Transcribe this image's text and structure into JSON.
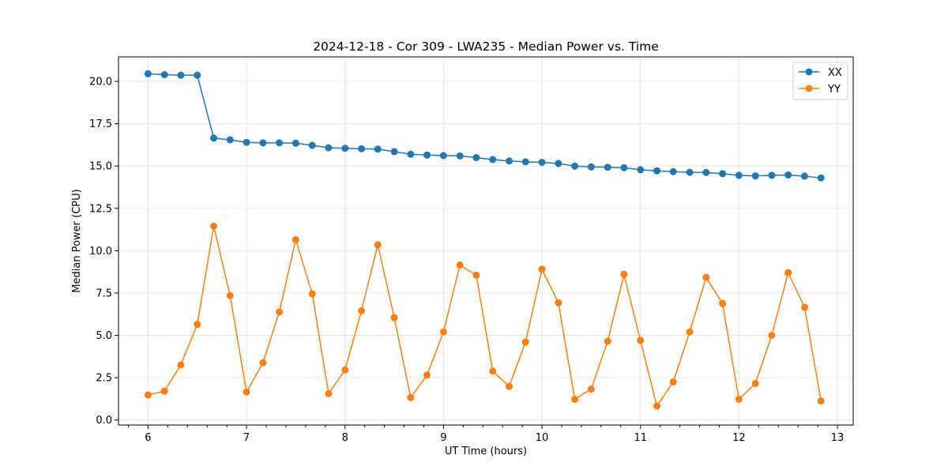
{
  "chart_data": {
    "type": "line",
    "title": "2024-12-18 - Cor 309 - LWA235 - Median Power vs. Time",
    "xlabel": "UT Time (hours)",
    "ylabel": "Median Power (CPU)",
    "xlim": [
      5.7,
      13.16
    ],
    "ylim": [
      -0.3,
      21.45
    ],
    "x_ticks": [
      6,
      7,
      8,
      9,
      10,
      11,
      12,
      13
    ],
    "x_tick_labels": [
      "6",
      "7",
      "8",
      "9",
      "10",
      "11",
      "12",
      "13"
    ],
    "y_ticks": [
      0,
      2.5,
      5,
      7.5,
      10,
      12.5,
      15,
      17.5,
      20
    ],
    "y_tick_labels": [
      "0.0",
      "2.5",
      "5.0",
      "7.5",
      "10.0",
      "12.5",
      "15.0",
      "17.5",
      "20.0"
    ],
    "minor_x_step": 0.2,
    "grid": true,
    "legend_position": "top-right",
    "x": [
      6.0,
      6.167,
      6.333,
      6.5,
      6.667,
      6.833,
      7.0,
      7.167,
      7.333,
      7.5,
      7.667,
      7.833,
      8.0,
      8.167,
      8.333,
      8.5,
      8.667,
      8.833,
      9.0,
      9.167,
      9.333,
      9.5,
      9.667,
      9.833,
      10.0,
      10.167,
      10.333,
      10.5,
      10.667,
      10.833,
      11.0,
      11.167,
      11.333,
      11.5,
      11.667,
      11.833,
      12.0,
      12.167,
      12.333,
      12.5,
      12.667,
      12.833
    ],
    "series": [
      {
        "name": "XX",
        "color": "#1f77b4",
        "marker": "circle",
        "values": [
          20.45,
          20.4,
          20.37,
          20.37,
          16.65,
          16.55,
          16.4,
          16.37,
          16.37,
          16.35,
          16.22,
          16.08,
          16.05,
          16.02,
          16.0,
          15.85,
          15.7,
          15.65,
          15.62,
          15.6,
          15.5,
          15.38,
          15.3,
          15.25,
          15.22,
          15.15,
          15.0,
          14.95,
          14.93,
          14.9,
          14.78,
          14.72,
          14.67,
          14.63,
          14.62,
          14.55,
          14.45,
          14.42,
          14.45,
          14.47,
          14.4,
          14.3
        ]
      },
      {
        "name": "YY",
        "color": "#ff7f0e",
        "marker": "circle",
        "values": [
          1.48,
          1.7,
          3.25,
          5.65,
          11.45,
          7.35,
          1.65,
          3.38,
          6.38,
          10.65,
          7.45,
          1.55,
          2.95,
          6.45,
          10.35,
          6.05,
          1.32,
          2.65,
          5.2,
          9.15,
          8.55,
          2.88,
          1.98,
          4.6,
          8.9,
          6.92,
          1.22,
          1.82,
          4.65,
          8.6,
          4.7,
          0.82,
          2.25,
          5.2,
          8.42,
          6.88,
          1.22,
          2.15,
          5.0,
          8.7,
          6.65,
          1.12
        ]
      }
    ]
  }
}
